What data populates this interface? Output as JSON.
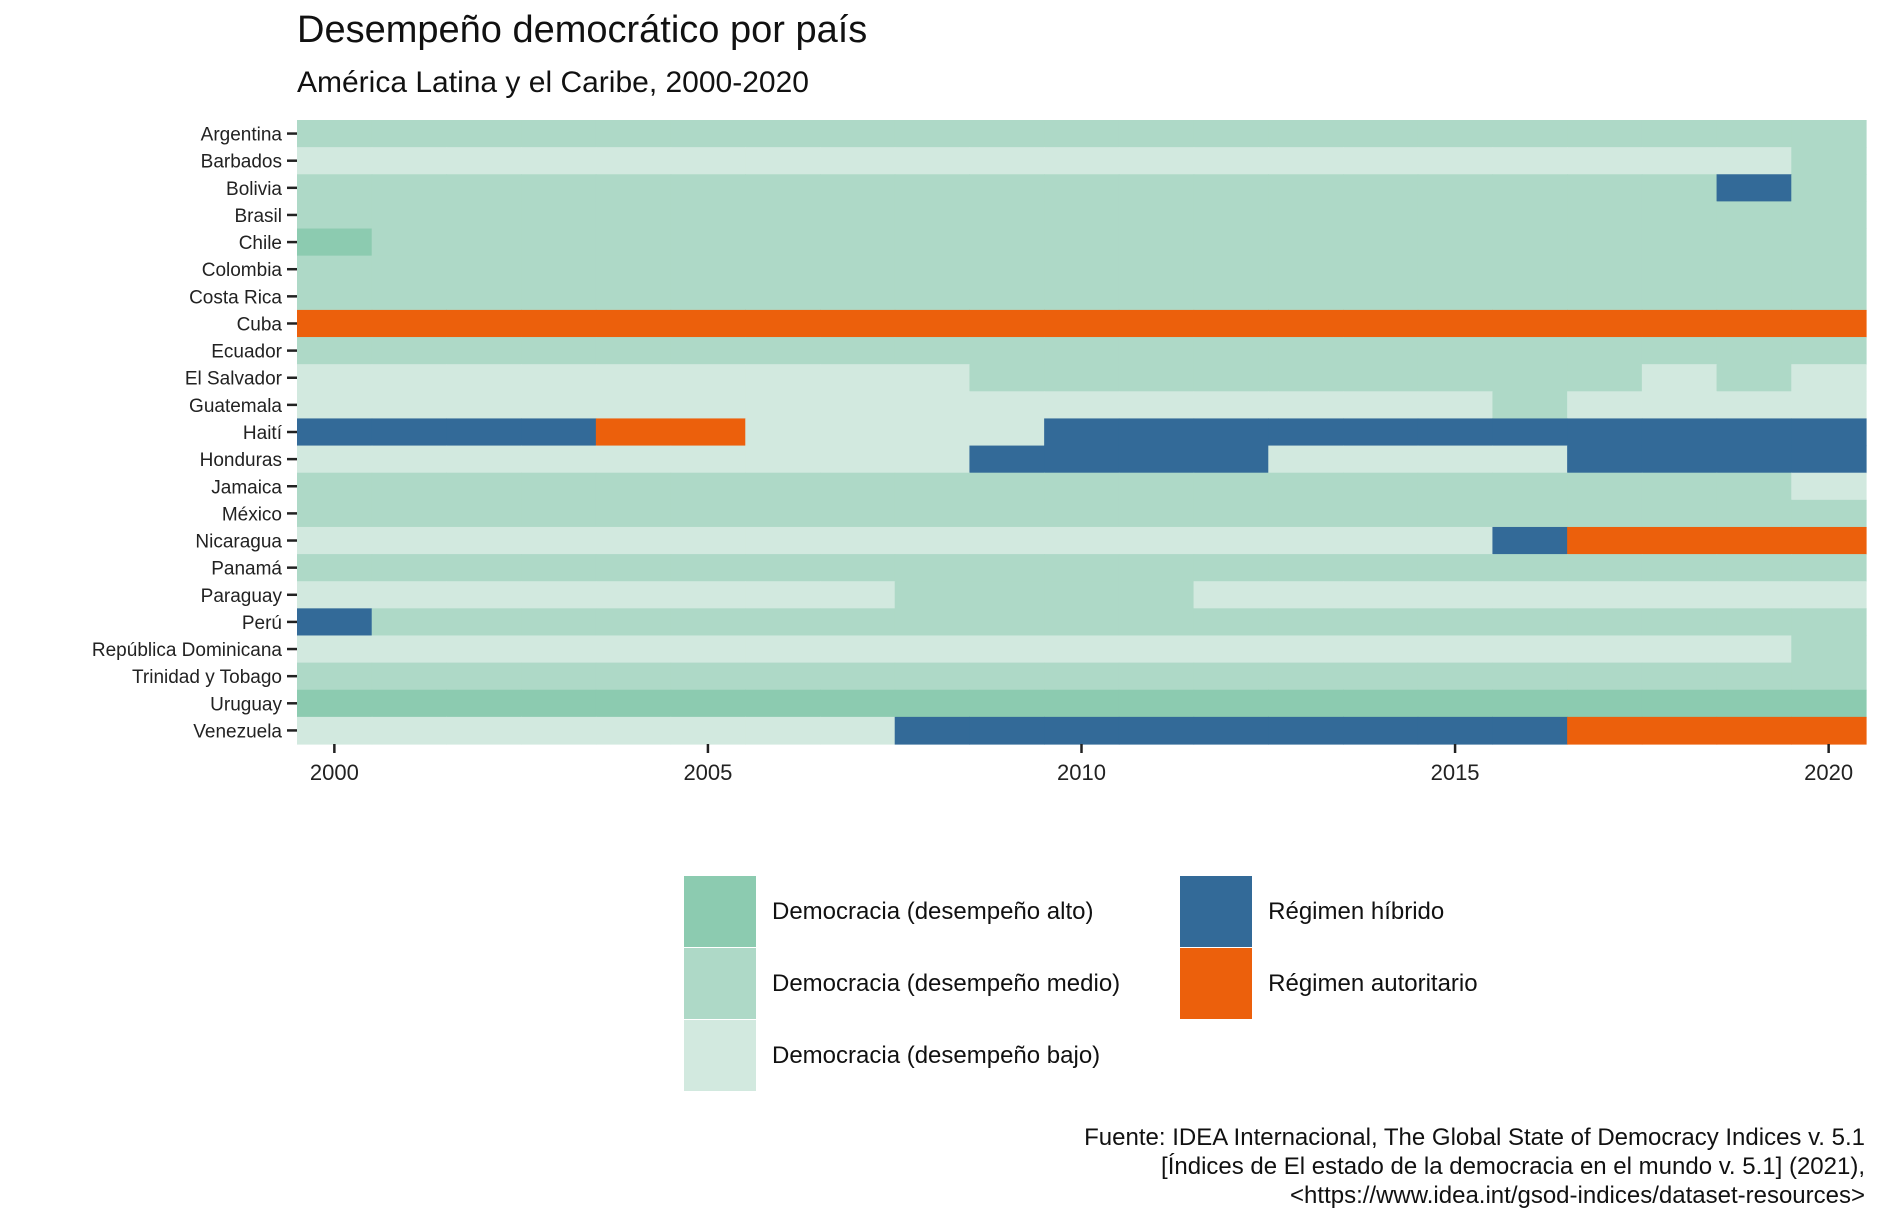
{
  "chart_data": {
    "type": "heatmap",
    "title": "Desempeño democrático por país",
    "subtitle": "América Latina y el Caribe, 2000-2020",
    "xlabel": "",
    "ylabel": "",
    "x": [
      2000,
      2001,
      2002,
      2003,
      2004,
      2005,
      2006,
      2007,
      2008,
      2009,
      2010,
      2011,
      2012,
      2013,
      2014,
      2015,
      2016,
      2017,
      2018,
      2019,
      2020
    ],
    "x_ticks": [
      2000,
      2005,
      2010,
      2015,
      2020
    ],
    "categories_legend": [
      {
        "code": "A",
        "label": "Democracia (desempeño alto)",
        "color": "#8ccbb0"
      },
      {
        "code": "M",
        "label": "Democracia (desempeño medio)",
        "color": "#aed9c7"
      },
      {
        "code": "B",
        "label": "Democracia (desempeño bajo)",
        "color": "#d2e9df"
      },
      {
        "code": "H",
        "label": "Régimen híbrido",
        "color": "#336a98"
      },
      {
        "code": "R",
        "label": "Régimen autoritario",
        "color": "#ec600c"
      }
    ],
    "legend_position": "bottom",
    "rows": [
      {
        "country": "Argentina",
        "values": "MMMMMMMMMMMMMMMMMMMMM"
      },
      {
        "country": "Barbados",
        "values": "BBBBBBBBBBBBBBBBBBBBM"
      },
      {
        "country": "Bolivia",
        "values": "MMMMMMMMMMMMMMMMMMMHM"
      },
      {
        "country": "Brasil",
        "values": "MMMMMMMMMMMMMMMMMMMMM"
      },
      {
        "country": "Chile",
        "values": "AMMMMMMMMMMMMMMMMMMMM"
      },
      {
        "country": "Colombia",
        "values": "MMMMMMMMMMMMMMMMMMMMM"
      },
      {
        "country": "Costa Rica",
        "values": "MMMMMMMMMMMMMMMMMMMMM"
      },
      {
        "country": "Cuba",
        "values": "RRRRRRRRRRRRRRRRRRRRR"
      },
      {
        "country": "Ecuador",
        "values": "MMMMMMMMMMMMMMMMMMMMM"
      },
      {
        "country": "El Salvador",
        "values": "BBBBBBBBBMMMMMMMMMBMB"
      },
      {
        "country": "Guatemala",
        "values": "BBBBBBBBBBBBBBBBMBBBB"
      },
      {
        "country": "Haití",
        "values": "HHHHRRBBBBHHHHHHHHHHH"
      },
      {
        "country": "Honduras",
        "values": "BBBBBBBBBHHHHBBBBHHHH"
      },
      {
        "country": "Jamaica",
        "values": "MMMMMMMMMMMMMMMMMMMMB"
      },
      {
        "country": "México",
        "values": "MMMMMMMMMMMMMMMMMMMMM"
      },
      {
        "country": "Nicaragua",
        "values": "BBBBBBBBBBBBBBBBHRRRR"
      },
      {
        "country": "Panamá",
        "values": "MMMMMMMMMMMMMMMMMMMMM"
      },
      {
        "country": "Paraguay",
        "values": "BBBBBBBBMMMMBBBBBBBBB"
      },
      {
        "country": "Perú",
        "values": "HMMMMMMMMMMMMMMMMMMMM"
      },
      {
        "country": "República Dominicana",
        "values": "BBBBBBBBBBBBBBBBBBBBM"
      },
      {
        "country": "Trinidad y Tobago",
        "values": "MMMMMMMMMMMMMMMMMMMMM"
      },
      {
        "country": "Uruguay",
        "values": "AAAAAAAAAAAAAAAAAAAAA"
      },
      {
        "country": "Venezuela",
        "values": "BBBBBBBBHHHHHHHHHRRRR"
      }
    ],
    "caption": [
      "Fuente: IDEA Internacional, The Global State of Democracy Indices v. 5.1",
      "[Índices de El estado de la democracia en el mundo v. 5.1] (2021),",
      "<https://www.idea.int/gsod-indices/dataset-resources>"
    ]
  }
}
